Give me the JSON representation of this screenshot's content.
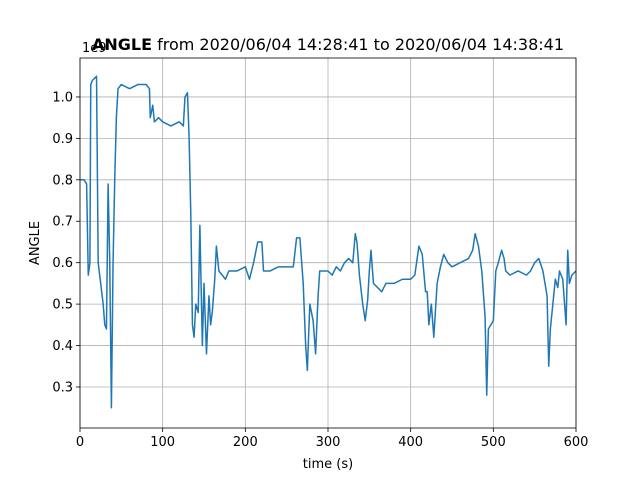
{
  "chart_data": {
    "type": "line",
    "title_bold": "ANGLE",
    "title_rest": "from 2020/06/04 14:28:41 to 2020/06/04 14:38:41",
    "xlabel": "time (s)",
    "ylabel": "ANGLE",
    "offset_label": "1e9",
    "xlim": [
      0,
      600
    ],
    "xticks": [
      0,
      100,
      200,
      300,
      400,
      500,
      600
    ],
    "ylim": [
      0.201,
      1.094
    ],
    "yticks": [
      0.3,
      0.4,
      0.5,
      0.6,
      0.7,
      0.8,
      0.9,
      {
        "value": 1,
        "label": "1.0"
      }
    ],
    "grid": true,
    "series": [
      {
        "name": "ANGLE",
        "color": "#1f77b4",
        "x": [
          0,
          5,
          8,
          10,
          12,
          13,
          15,
          20,
          22,
          25,
          28,
          30,
          32,
          34,
          36,
          38,
          40,
          42,
          44,
          46,
          50,
          60,
          70,
          80,
          84,
          85,
          88,
          90,
          95,
          100,
          110,
          120,
          125,
          127,
          130,
          132,
          134,
          136,
          138,
          140,
          143,
          145,
          148,
          150,
          153,
          156,
          158,
          160,
          163,
          165,
          168,
          172,
          176,
          180,
          190,
          200,
          205,
          210,
          215,
          220,
          222,
          230,
          240,
          250,
          258,
          262,
          266,
          270,
          273,
          275,
          278,
          282,
          285,
          288,
          290,
          295,
          300,
          305,
          310,
          315,
          320,
          325,
          330,
          333,
          335,
          338,
          342,
          345,
          348,
          350,
          352,
          355,
          360,
          365,
          370,
          380,
          390,
          400,
          405,
          410,
          414,
          418,
          420,
          422,
          425,
          428,
          432,
          436,
          440,
          445,
          450,
          460,
          470,
          475,
          478,
          482,
          486,
          490,
          492,
          494,
          497,
          500,
          503,
          506,
          510,
          513,
          515,
          520,
          530,
          540,
          545,
          550,
          555,
          560,
          565,
          567,
          569,
          572,
          575,
          578,
          580,
          584,
          588,
          590,
          592,
          595,
          600
        ],
        "values": [
          0.8,
          0.8,
          0.79,
          0.57,
          0.6,
          1.03,
          1.04,
          1.05,
          0.6,
          0.55,
          0.5,
          0.45,
          0.44,
          0.79,
          0.6,
          0.25,
          0.6,
          0.8,
          0.95,
          1.02,
          1.03,
          1.02,
          1.03,
          1.03,
          1.02,
          0.95,
          0.98,
          0.94,
          0.95,
          0.94,
          0.93,
          0.94,
          0.93,
          1.0,
          1.01,
          0.9,
          0.72,
          0.45,
          0.42,
          0.5,
          0.48,
          0.69,
          0.4,
          0.55,
          0.38,
          0.52,
          0.45,
          0.48,
          0.56,
          0.64,
          0.58,
          0.57,
          0.56,
          0.58,
          0.58,
          0.59,
          0.56,
          0.6,
          0.65,
          0.65,
          0.58,
          0.58,
          0.59,
          0.59,
          0.59,
          0.66,
          0.66,
          0.55,
          0.4,
          0.34,
          0.5,
          0.46,
          0.38,
          0.52,
          0.58,
          0.58,
          0.58,
          0.57,
          0.59,
          0.58,
          0.6,
          0.61,
          0.6,
          0.67,
          0.65,
          0.57,
          0.5,
          0.46,
          0.51,
          0.58,
          0.63,
          0.55,
          0.54,
          0.53,
          0.55,
          0.55,
          0.56,
          0.56,
          0.57,
          0.64,
          0.62,
          0.53,
          0.53,
          0.45,
          0.5,
          0.42,
          0.55,
          0.59,
          0.62,
          0.6,
          0.59,
          0.6,
          0.61,
          0.63,
          0.67,
          0.64,
          0.58,
          0.47,
          0.28,
          0.44,
          0.45,
          0.46,
          0.58,
          0.6,
          0.63,
          0.61,
          0.58,
          0.57,
          0.58,
          0.57,
          0.58,
          0.6,
          0.61,
          0.58,
          0.52,
          0.35,
          0.44,
          0.5,
          0.56,
          0.54,
          0.58,
          0.56,
          0.45,
          0.63,
          0.55,
          0.57,
          0.58
        ]
      }
    ]
  }
}
